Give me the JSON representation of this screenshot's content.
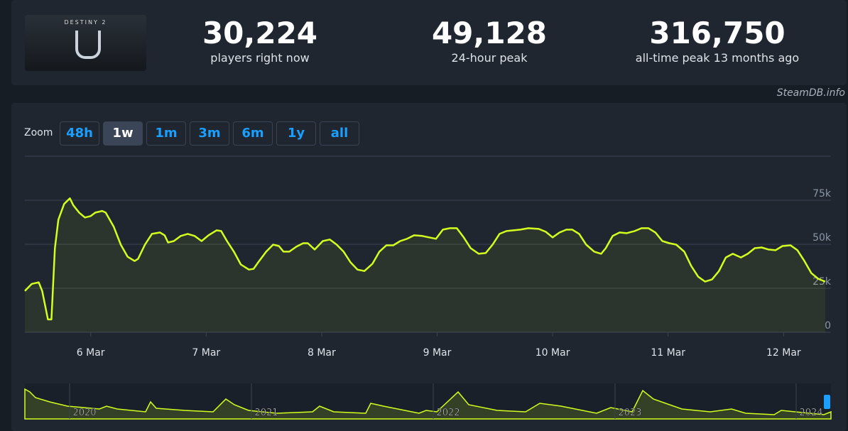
{
  "header": {
    "logo_text": "DESTINY 2",
    "stats": [
      {
        "value": "30,224",
        "label": "players right now"
      },
      {
        "value": "49,128",
        "label": "24-hour peak"
      },
      {
        "value": "316,750",
        "label": "all-time peak 13 months ago"
      }
    ],
    "site": "SteamDB.info"
  },
  "zoom": {
    "label": "Zoom",
    "buttons": [
      "48h",
      "1w",
      "1m",
      "3m",
      "6m",
      "1y",
      "all"
    ],
    "active": "1w"
  },
  "chart_data": {
    "type": "line",
    "color": "#d2ff1e",
    "x": [
      5.43,
      5.49,
      5.55,
      5.58,
      5.63,
      5.66,
      5.69,
      5.72,
      5.77,
      5.82,
      5.85,
      5.9,
      5.95,
      6.0,
      6.04,
      6.1,
      6.13,
      6.2,
      6.26,
      6.32,
      6.38,
      6.41,
      6.47,
      6.53,
      6.6,
      6.64,
      6.67,
      6.72,
      6.78,
      6.84,
      6.9,
      6.96,
      7.02,
      7.09,
      7.13,
      7.18,
      7.24,
      7.3,
      7.37,
      7.41,
      7.45,
      7.52,
      7.58,
      7.63,
      7.67,
      7.72,
      7.78,
      7.84,
      7.88,
      7.94,
      8.01,
      8.07,
      8.13,
      8.19,
      8.25,
      8.31,
      8.37,
      8.44,
      8.5,
      8.56,
      8.62,
      8.68,
      8.74,
      8.8,
      8.87,
      8.93,
      8.99,
      9.05,
      9.11,
      9.17,
      9.23,
      9.29,
      9.36,
      9.42,
      9.48,
      9.54,
      9.6,
      9.66,
      9.72,
      9.79,
      9.88,
      9.94,
      10.0,
      10.06,
      10.12,
      10.17,
      10.23,
      10.29,
      10.36,
      10.42,
      10.46,
      10.52,
      10.58,
      10.64,
      10.71,
      10.77,
      10.83,
      10.89,
      10.95,
      11.01,
      11.07,
      11.14,
      11.2,
      11.26,
      11.32,
      11.38,
      11.44,
      11.5,
      11.56,
      11.63,
      11.69,
      11.75,
      11.81,
      11.87,
      11.93,
      11.99,
      12.06,
      12.12,
      12.18,
      12.24,
      12.3,
      12.36
    ],
    "values": [
      23500,
      27500,
      28400,
      23500,
      7300,
      7300,
      47800,
      64000,
      72900,
      76100,
      72100,
      68000,
      65200,
      66000,
      68000,
      68900,
      68000,
      59900,
      49800,
      42900,
      40500,
      41700,
      49800,
      55900,
      56700,
      55100,
      51000,
      51800,
      54700,
      55900,
      54700,
      51800,
      55100,
      57900,
      57500,
      51800,
      45800,
      38500,
      35600,
      36000,
      39700,
      45800,
      49800,
      49000,
      45800,
      45800,
      48600,
      50600,
      50600,
      47000,
      51800,
      52700,
      49800,
      45800,
      39700,
      35600,
      34800,
      38900,
      45800,
      49400,
      49400,
      51800,
      53100,
      55100,
      54700,
      53900,
      53100,
      58300,
      59100,
      59100,
      53900,
      47800,
      44600,
      45000,
      49800,
      55900,
      57500,
      57900,
      58300,
      59100,
      58700,
      57100,
      53900,
      56700,
      58300,
      58300,
      55900,
      49800,
      45800,
      44600,
      47800,
      54700,
      56700,
      56300,
      57500,
      59100,
      59100,
      56700,
      51800,
      50600,
      49800,
      45800,
      37700,
      31600,
      28800,
      30000,
      34800,
      42500,
      44600,
      42500,
      44600,
      47800,
      48200,
      47000,
      46600,
      49000,
      49400,
      46600,
      40500,
      33600,
      30400,
      28800
    ],
    "xlim": [
      5.43,
      12.41
    ],
    "ylim": [
      0,
      100000
    ],
    "xticks": [
      {
        "value": 6,
        "label": "6 Mar"
      },
      {
        "value": 7,
        "label": "7 Mar"
      },
      {
        "value": 8,
        "label": "8 Mar"
      },
      {
        "value": 9,
        "label": "9 Mar"
      },
      {
        "value": 10,
        "label": "10 Mar"
      },
      {
        "value": 11,
        "label": "11 Mar"
      },
      {
        "value": 12,
        "label": "12 Mar"
      }
    ],
    "yticks": [
      0,
      {
        "value": 25000,
        "label": "25k"
      },
      {
        "value": 50000,
        "label": "50k"
      },
      {
        "value": 75000,
        "label": "75k"
      }
    ],
    "grid": true,
    "navigator_labels": [
      "2020",
      "2021",
      "2022",
      "2023",
      "2024"
    ]
  }
}
